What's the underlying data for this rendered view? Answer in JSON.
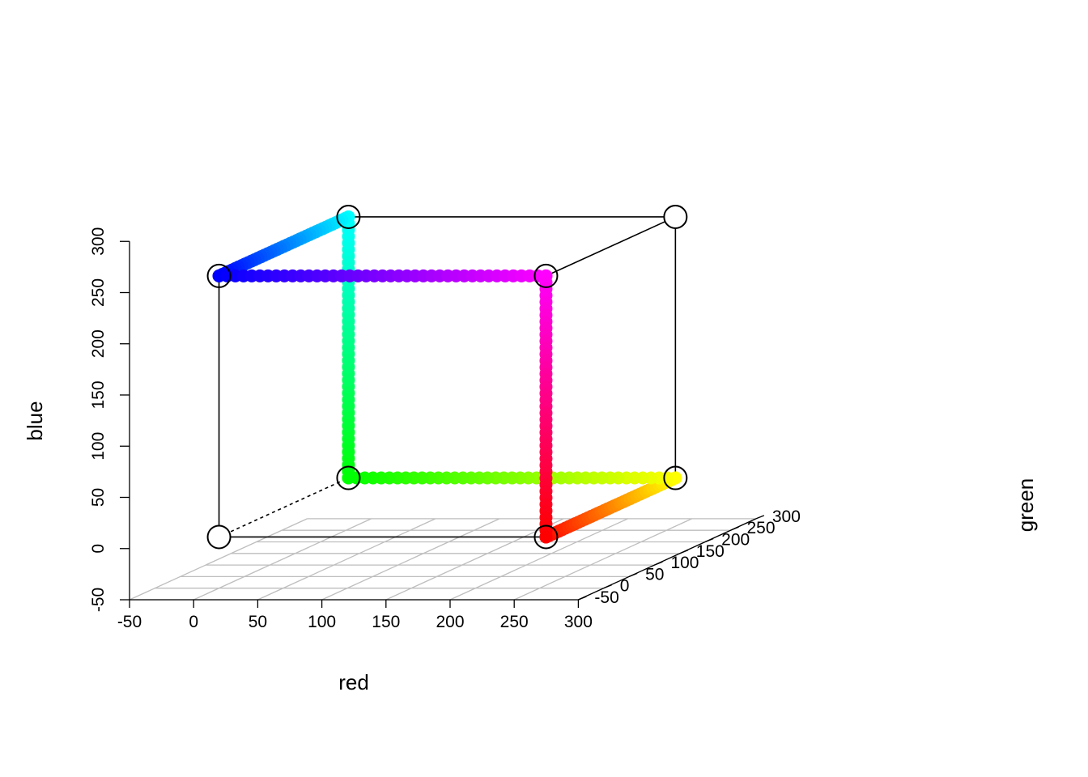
{
  "chart_data": {
    "type": "scatter",
    "subtype": "scatter3d",
    "title": "",
    "xlabel": "red",
    "ylabel": "green",
    "zlabel": "blue",
    "xlim": [
      -50,
      300
    ],
    "ylim": [
      -50,
      300
    ],
    "zlim": [
      -50,
      300
    ],
    "x_ticks": [
      "-50",
      "0",
      "50",
      "100",
      "150",
      "200",
      "250",
      "300"
    ],
    "y_ticks": [
      "-50",
      "0",
      "50",
      "100",
      "150",
      "200",
      "250",
      "300"
    ],
    "z_ticks": [
      "-50",
      "0",
      "50",
      "100",
      "150",
      "200",
      "250",
      "300"
    ],
    "grid": true,
    "legend": "none",
    "cube_corners": [
      {
        "red": 0,
        "green": 0,
        "blue": 0
      },
      {
        "red": 255,
        "green": 0,
        "blue": 0
      },
      {
        "red": 0,
        "green": 255,
        "blue": 0
      },
      {
        "red": 255,
        "green": 255,
        "blue": 0
      },
      {
        "red": 0,
        "green": 0,
        "blue": 255
      },
      {
        "red": 255,
        "green": 0,
        "blue": 255
      },
      {
        "red": 0,
        "green": 255,
        "blue": 255
      },
      {
        "red": 255,
        "green": 255,
        "blue": 255
      }
    ],
    "cube_edges_solid": [
      [
        0,
        1
      ],
      [
        0,
        4
      ],
      [
        1,
        3
      ],
      [
        3,
        7
      ],
      [
        6,
        7
      ],
      [
        5,
        7
      ],
      [
        4,
        6
      ],
      [
        1,
        5
      ]
    ],
    "cube_edges_dashed": [
      [
        0,
        2
      ]
    ],
    "series": [
      {
        "from": {
          "red": 255,
          "green": 0,
          "blue": 0
        },
        "to": {
          "red": 255,
          "green": 255,
          "blue": 0
        },
        "steps": 40
      },
      {
        "from": {
          "red": 255,
          "green": 255,
          "blue": 0
        },
        "to": {
          "red": 0,
          "green": 255,
          "blue": 0
        },
        "steps": 40
      },
      {
        "from": {
          "red": 0,
          "green": 255,
          "blue": 0
        },
        "to": {
          "red": 0,
          "green": 255,
          "blue": 255
        },
        "steps": 40
      },
      {
        "from": {
          "red": 0,
          "green": 255,
          "blue": 255
        },
        "to": {
          "red": 0,
          "green": 0,
          "blue": 255
        },
        "steps": 40
      },
      {
        "from": {
          "red": 0,
          "green": 0,
          "blue": 255
        },
        "to": {
          "red": 255,
          "green": 0,
          "blue": 255
        },
        "steps": 40
      },
      {
        "from": {
          "red": 255,
          "green": 0,
          "blue": 255
        },
        "to": {
          "red": 255,
          "green": 0,
          "blue": 0
        },
        "steps": 40
      }
    ],
    "colors": {
      "axis": "#000000",
      "grid": "#bebebe",
      "corner_fill": "#ffffff"
    }
  }
}
